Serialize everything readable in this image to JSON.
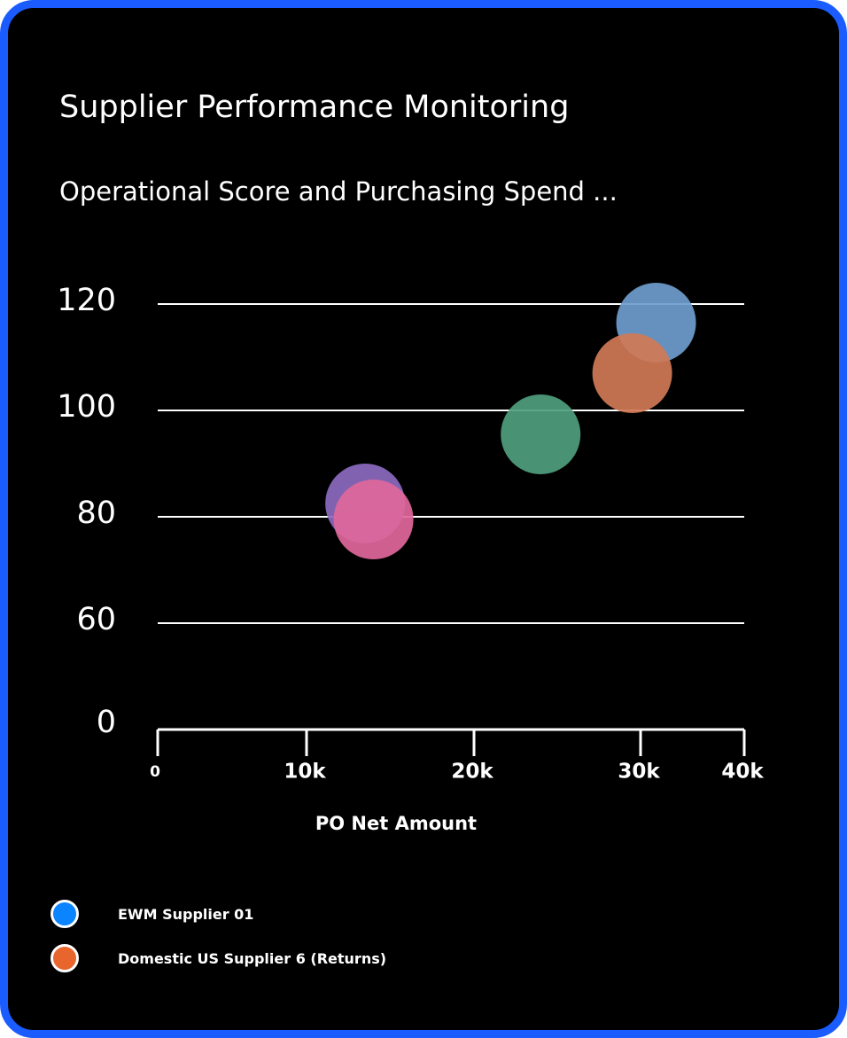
{
  "card": {
    "title": "Supplier Performance Monitoring",
    "subtitle": "Operational Score and Purchasing Spend ...",
    "border_color": "#1a5cff",
    "background": "#000000"
  },
  "chart_data": {
    "type": "scatter",
    "xlabel": "PO Net Amount",
    "ylabel": "",
    "x_ticks": [
      "0",
      "10k",
      "20k",
      "30k",
      "40k"
    ],
    "y_ticks": [
      "0",
      "60",
      "80",
      "100",
      "120"
    ],
    "xlim": [
      0,
      40000
    ],
    "y_axis_break": true,
    "grid": true,
    "bubbles": [
      {
        "x": 31500,
        "y": 116.5,
        "color": "#6f9ccd"
      },
      {
        "x": 29500,
        "y": 107,
        "color": "#d07a55"
      },
      {
        "x": 24000,
        "y": 95.5,
        "color": "#4f9e7e"
      },
      {
        "x": 13500,
        "y": 82.5,
        "color": "#8c6ac0"
      },
      {
        "x": 14000,
        "y": 79.5,
        "color": "#e0679b"
      }
    ],
    "legend": [
      {
        "name": "EWM Supplier 01",
        "color": "#0a84ff"
      },
      {
        "name": "Domestic US Supplier 6 (Returns)",
        "color": "#e8652e"
      }
    ],
    "legend_position": "bottom-left"
  }
}
